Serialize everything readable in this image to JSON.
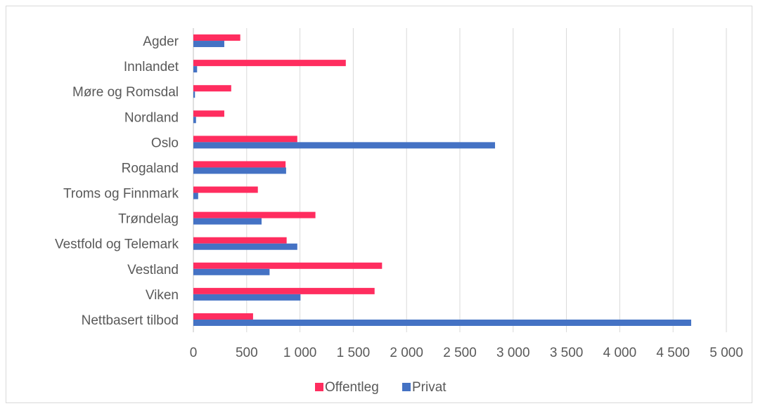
{
  "chart_data": {
    "type": "bar",
    "orientation": "horizontal",
    "categories": [
      "Agder",
      "Innlandet",
      "Møre og Romsdal",
      "Nordland",
      "Oslo",
      "Rogaland",
      "Troms og Finnmark",
      "Trøndelag",
      "Vestfold og Telemark",
      "Vestland",
      "Viken",
      "Nettbasert tilbod"
    ],
    "series": [
      {
        "name": "Offentleg",
        "color": "#ff2d5f",
        "values": [
          440,
          1430,
          355,
          290,
          975,
          865,
          605,
          1145,
          875,
          1770,
          1700,
          560
        ]
      },
      {
        "name": "Privat",
        "color": "#4472c4",
        "values": [
          290,
          35,
          15,
          25,
          2830,
          870,
          45,
          640,
          975,
          715,
          1005,
          4670
        ]
      }
    ],
    "xlim": [
      0,
      5000
    ],
    "xticks": [
      0,
      500,
      1000,
      1500,
      2000,
      2500,
      3000,
      3500,
      4000,
      4500,
      5000
    ],
    "xtick_labels": [
      "0",
      "500",
      "1 000",
      "1 500",
      "2 000",
      "2 500",
      "3 000",
      "3 500",
      "4 000",
      "4 500",
      "5 000"
    ],
    "grid": "vertical",
    "legend_position": "bottom",
    "title": "",
    "xlabel": "",
    "ylabel": ""
  }
}
